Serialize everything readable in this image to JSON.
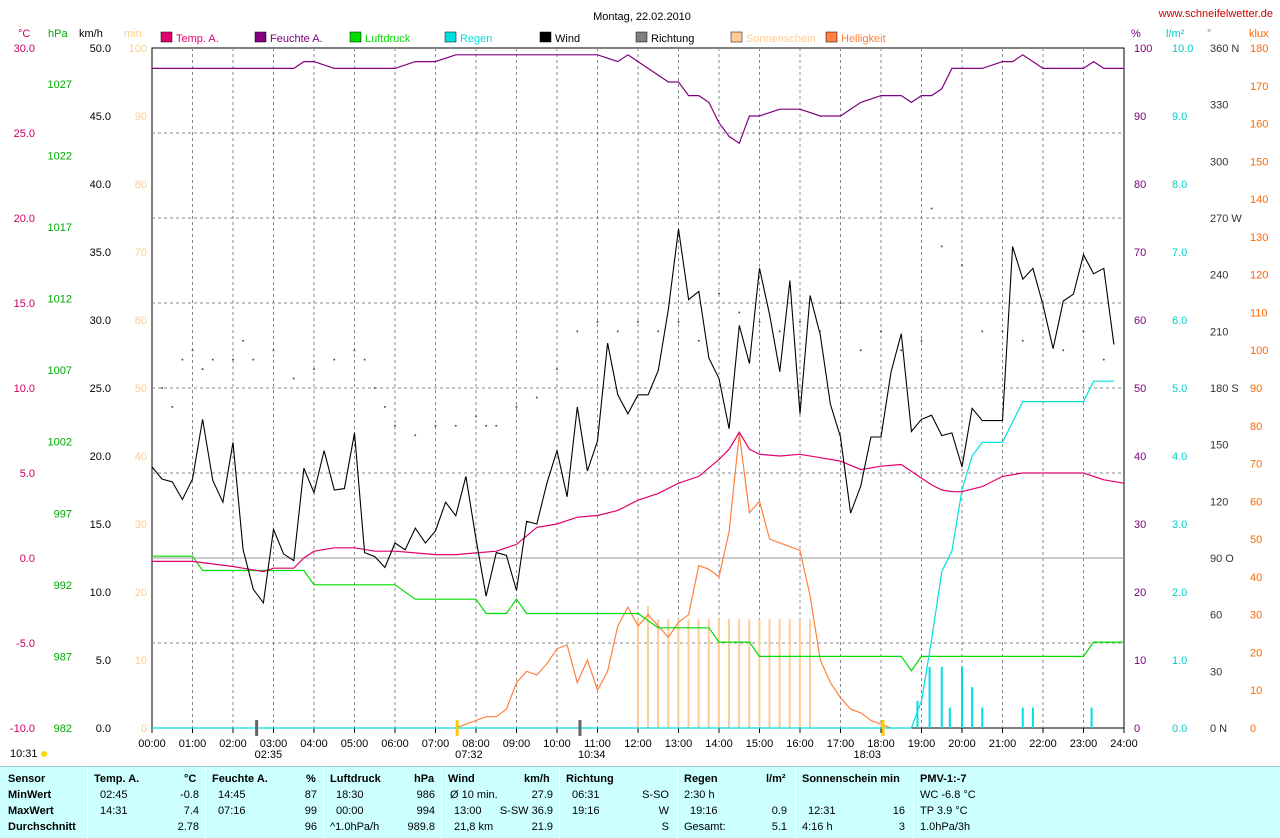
{
  "header": {
    "title": "Montag, 22.02.2010",
    "site": "www.schneifelwetter.de"
  },
  "axes": {
    "temp": {
      "unit": "°C",
      "ticks": [
        "30.0",
        "25.0",
        "20.0",
        "15.0",
        "10.0",
        "5.0",
        "0.0",
        "-5.0",
        "-10.0"
      ],
      "color": "#cc0066"
    },
    "pressure": {
      "unit": "hPa",
      "ticks": [
        "1027",
        "1022",
        "1017",
        "1012",
        "1007",
        "1002",
        "997",
        "992",
        "987",
        "982"
      ],
      "color": "#00aa00"
    },
    "wind": {
      "unit": "km/h",
      "ticks": [
        "50.0",
        "45.0",
        "40.0",
        "35.0",
        "30.0",
        "25.0",
        "20.0",
        "15.0",
        "10.0",
        "5.0",
        "0.0"
      ],
      "color": "#000000"
    },
    "sun": {
      "unit": "min",
      "ticks": [
        "100",
        "90",
        "80",
        "70",
        "60",
        "50",
        "40",
        "30",
        "20",
        "10",
        "0"
      ],
      "color": "#ffcc88"
    },
    "humidity": {
      "unit": "%",
      "ticks": [
        "100",
        "90",
        "80",
        "70",
        "60",
        "50",
        "40",
        "30",
        "20",
        "10",
        "0"
      ],
      "color": "#800080"
    },
    "rain": {
      "unit": "l/m²",
      "ticks": [
        "10.0",
        "9.0",
        "8.0",
        "7.0",
        "6.0",
        "5.0",
        "4.0",
        "3.0",
        "2.0",
        "1.0",
        "0.0"
      ],
      "color": "#00cccc"
    },
    "direction": {
      "unit": "°",
      "ticks": [
        "360 N",
        "330",
        "300",
        "270 W",
        "240",
        "210",
        "180 S",
        "150",
        "120",
        "90 O",
        "60",
        "30",
        "0 N"
      ],
      "color": "#000000"
    },
    "lux": {
      "unit": "klux",
      "ticks": [
        "180",
        "170",
        "160",
        "150",
        "140",
        "130",
        "120",
        "110",
        "100",
        "90",
        "80",
        "70",
        "60",
        "50",
        "40",
        "30",
        "20",
        "10",
        "0"
      ],
      "color": "#ff6600"
    },
    "time": {
      "ticks": [
        "00:00",
        "01:00",
        "02:00",
        "03:00",
        "04:00",
        "05:00",
        "06:00",
        "07:00",
        "08:00",
        "09:00",
        "10:00",
        "11:00",
        "12:00",
        "13:00",
        "14:00",
        "15:00",
        "16:00",
        "17:00",
        "18:00",
        "19:00",
        "20:00",
        "21:00",
        "22:00",
        "23:00",
        "24:00"
      ]
    }
  },
  "legend": [
    {
      "label": "Temp. A.",
      "color": "#e0006e"
    },
    {
      "label": "Feuchte A.",
      "color": "#800080"
    },
    {
      "label": "Luftdruck",
      "color": "#00dd00"
    },
    {
      "label": "Regen",
      "color": "#00e0e0"
    },
    {
      "label": "Wind",
      "color": "#000000"
    },
    {
      "label": "Richtung",
      "color": "#808080"
    },
    {
      "label": "Sonnenschein",
      "color": "#ffcc99"
    },
    {
      "label": "Helligkeit",
      "color": "#ff8040"
    }
  ],
  "markers": {
    "left_time": "10:31",
    "m1": "02:35",
    "m2": "07:32",
    "m3": "10:34",
    "m4": "18:03"
  },
  "chart_data": {
    "type": "line",
    "x_unit": "hours",
    "xlim": [
      0,
      24
    ],
    "series": [
      {
        "name": "Wind",
        "unit": "km/h",
        "ylim": [
          0,
          50
        ],
        "x": [
          0,
          0.25,
          0.5,
          0.75,
          1,
          1.25,
          1.5,
          1.75,
          2,
          2.25,
          2.5,
          2.75,
          3,
          3.25,
          3.5,
          3.75,
          4,
          4.25,
          4.5,
          4.75,
          5,
          5.25,
          5.5,
          5.75,
          6,
          6.25,
          6.5,
          6.75,
          7,
          7.25,
          7.5,
          7.75,
          8,
          8.25,
          8.5,
          8.75,
          9,
          9.25,
          9.5,
          9.75,
          10,
          10.25,
          10.5,
          10.75,
          11,
          11.25,
          11.5,
          11.75,
          12,
          12.25,
          12.5,
          12.75,
          13,
          13.25,
          13.5,
          13.75,
          14,
          14.25,
          14.5,
          14.75,
          15,
          15.25,
          15.5,
          15.75,
          16,
          16.25,
          16.5,
          16.75,
          17,
          17.25,
          17.5,
          17.75,
          18,
          18.25,
          18.5,
          18.75,
          19,
          19.25,
          19.5,
          19.75,
          20,
          20.25,
          20.5,
          20.75,
          21,
          21.25,
          21.5,
          21.75,
          22,
          22.25,
          22.5,
          22.75,
          23,
          23.25,
          23.5,
          23.75
        ],
        "y": [
          19.2,
          18.3,
          18.1,
          16.8,
          18.3,
          22.7,
          18.2,
          16.6,
          21.0,
          13.1,
          10.2,
          9.2,
          14.6,
          12.8,
          12.3,
          19.1,
          17.3,
          20.4,
          17.5,
          17.6,
          21.7,
          12.9,
          12.6,
          11.8,
          13.6,
          13.1,
          14.7,
          13.6,
          14.5,
          16.6,
          15.6,
          18.5,
          13.9,
          9.7,
          12.9,
          12.7,
          10.1,
          15.2,
          15.0,
          18.0,
          20.4,
          17.0,
          23.6,
          18.9,
          21.1,
          28.3,
          24.5,
          23.1,
          24.5,
          24.5,
          26.3,
          30.8,
          36.7,
          31.5,
          32.1,
          27.2,
          25.7,
          22.0,
          29.6,
          26.8,
          33.8,
          30.4,
          26.2,
          32.9,
          23.1,
          31.8,
          28.9,
          23.8,
          21.4,
          15.8,
          17.8,
          21.4,
          21.4,
          26.2,
          29.0,
          21.8,
          22.7,
          23.0,
          21.5,
          21.7,
          19.2,
          23.5,
          22.6,
          22.6,
          22.6,
          35.4,
          33.0,
          33.8,
          31.1,
          27.9,
          31.4,
          31.9,
          34.8,
          33.4,
          33.8,
          28.2
        ]
      },
      {
        "name": "Feuchte A.",
        "unit": "%",
        "ylim": [
          0,
          100
        ],
        "x": [
          0,
          1,
          2,
          3,
          3.5,
          3.75,
          4,
          4.5,
          5,
          6,
          6.5,
          7,
          7.5,
          8,
          9,
          11,
          11.5,
          11.75,
          12,
          12.25,
          12.5,
          12.75,
          13,
          13.25,
          13.5,
          13.75,
          14,
          14.25,
          14.5,
          14.75,
          15,
          15.5,
          15.75,
          16,
          16.5,
          17,
          17.5,
          18,
          18.5,
          18.75,
          19,
          19.25,
          19.5,
          19.75,
          20,
          20.5,
          21,
          21.25,
          21.5,
          22,
          22.5,
          23,
          23.25,
          23.5,
          24
        ],
        "y": [
          97,
          97,
          97,
          97,
          97,
          98,
          98,
          97,
          97,
          97,
          98,
          98,
          99,
          99,
          99,
          99,
          98,
          99,
          98,
          97,
          96,
          95,
          95,
          93,
          93,
          92,
          89,
          87,
          86,
          90,
          90,
          91,
          91,
          91,
          90,
          90,
          92,
          93,
          93,
          92,
          93,
          93,
          94,
          97,
          97,
          97,
          98,
          98,
          99,
          97,
          97,
          97,
          98,
          97,
          97
        ]
      },
      {
        "name": "Temp. A.",
        "unit": "°C",
        "ylim": [
          -10,
          30
        ],
        "x": [
          0,
          1,
          2,
          2.75,
          3,
          3.5,
          3.75,
          4,
          4.5,
          5,
          5.5,
          6,
          6.5,
          7,
          7.5,
          8,
          8.5,
          9,
          9.5,
          10,
          10.5,
          11,
          11.5,
          12,
          12.5,
          13,
          13.5,
          14,
          14.25,
          14.5,
          14.75,
          15,
          15.5,
          16,
          16.5,
          17,
          17.5,
          18,
          18.5,
          19,
          19.25,
          19.5,
          19.75,
          20,
          20.5,
          21,
          21.5,
          22,
          22.5,
          23,
          23.5,
          24
        ],
        "y": [
          -0.2,
          -0.2,
          -0.5,
          -0.8,
          -0.6,
          -0.6,
          0.0,
          0.4,
          0.6,
          0.6,
          0.4,
          0.4,
          0.3,
          0.2,
          0.2,
          0.3,
          0.4,
          0.8,
          1.8,
          2.0,
          2.4,
          2.5,
          2.8,
          3.4,
          3.8,
          4.4,
          4.8,
          5.8,
          6.4,
          7.4,
          6.4,
          6.1,
          6.0,
          6.1,
          5.9,
          5.7,
          5.2,
          5.4,
          5.5,
          4.7,
          4.3,
          4.0,
          3.9,
          3.9,
          4.2,
          4.8,
          5.0,
          5.0,
          5.0,
          5.0,
          4.6,
          4.4
        ]
      },
      {
        "name": "Luftdruck",
        "unit": "hPa",
        "ylim": [
          982,
          1029.5
        ],
        "x": [
          0,
          1,
          1.25,
          2,
          3,
          3.5,
          3.75,
          4,
          6,
          6.5,
          7,
          8,
          8.25,
          8.5,
          8.75,
          9,
          9.25,
          10,
          11,
          12,
          12.25,
          12.5,
          13,
          13.75,
          14,
          14.5,
          14.75,
          15,
          16,
          17,
          18,
          18.5,
          18.75,
          19,
          20,
          21,
          22,
          22.5,
          23,
          23.25,
          23.5,
          24
        ],
        "y": [
          994.0,
          994.0,
          993.0,
          993.0,
          993.0,
          993.0,
          993.0,
          992.0,
          992.0,
          991.0,
          991.0,
          991.0,
          990.0,
          990.0,
          990.0,
          991.0,
          990.0,
          990.0,
          990.0,
          990.0,
          989.5,
          989.0,
          989.0,
          989.0,
          988.0,
          988.0,
          988.0,
          987.0,
          987.0,
          987.0,
          987.0,
          987.0,
          986.0,
          987.0,
          987.0,
          987.0,
          987.0,
          987.0,
          987.0,
          988.0,
          988.0,
          988.0
        ]
      },
      {
        "name": "Regen",
        "unit": "l/m²",
        "ylim": [
          0,
          10
        ],
        "x": [
          0,
          18.75,
          19,
          19.25,
          19.5,
          19.75,
          20,
          20.25,
          20.5,
          21,
          21.25,
          21.5,
          22,
          22.5,
          23,
          23.25,
          23.75
        ],
        "y": [
          0,
          0,
          0.4,
          1.3,
          2.3,
          2.6,
          3.5,
          4.0,
          4.2,
          4.2,
          4.5,
          4.8,
          4.8,
          4.8,
          4.8,
          5.1,
          5.1
        ]
      },
      {
        "name": "Helligkeit",
        "unit": "klux",
        "ylim": [
          0,
          180
        ],
        "x": [
          7.5,
          7.75,
          8,
          8.25,
          8.5,
          8.75,
          9,
          9.25,
          9.5,
          9.75,
          10,
          10.25,
          10.5,
          10.75,
          11,
          11.25,
          11.5,
          11.75,
          12,
          12.25,
          12.5,
          12.75,
          13,
          13.25,
          13.5,
          13.75,
          14,
          14.25,
          14.5,
          14.75,
          15,
          15.25,
          15.5,
          15.75,
          16,
          16.25,
          16.5,
          16.75,
          17,
          17.25,
          17.5,
          17.75,
          18,
          18.25
        ],
        "y": [
          0,
          1,
          2,
          3,
          3,
          5,
          12,
          15,
          14,
          17,
          21,
          22,
          12,
          18,
          10,
          15,
          27,
          32,
          27,
          30,
          27,
          24,
          28,
          30,
          43,
          42,
          40,
          52,
          78,
          57,
          60,
          50,
          49,
          48,
          47,
          35,
          18,
          12,
          8,
          5,
          4,
          2,
          1,
          0
        ]
      },
      {
        "name": "Richtung",
        "unit": "°",
        "ylim": [
          0,
          360
        ],
        "x": [
          0.25,
          0.5,
          0.75,
          1,
          1.25,
          1.5,
          2,
          2.25,
          2.5,
          3,
          3.5,
          4,
          4.5,
          5,
          5.25,
          5.5,
          5.75,
          6,
          6.5,
          7,
          7.5,
          8,
          8.25,
          8.5,
          9,
          9.5,
          10,
          10.5,
          11,
          11.5,
          12,
          12.5,
          13,
          13.5,
          14,
          14.5,
          15,
          15.5,
          16,
          16.5,
          17,
          17.5,
          18,
          18.5,
          19,
          19.25,
          19.5,
          20,
          20.5,
          21,
          21.5,
          22,
          22.5,
          23,
          23.5
        ],
        "y": [
          180,
          170,
          195,
          200,
          190,
          195,
          195,
          205,
          195,
          200,
          185,
          190,
          195,
          200,
          195,
          180,
          170,
          160,
          155,
          160,
          160,
          165,
          160,
          160,
          170,
          175,
          190,
          210,
          215,
          210,
          215,
          210,
          215,
          205,
          230,
          220,
          215,
          210,
          215,
          210,
          225,
          200,
          210,
          200,
          205,
          275,
          255,
          245,
          210,
          210,
          205,
          225,
          200,
          210,
          195
        ]
      },
      {
        "name": "Sonnenschein",
        "unit": "min",
        "x": [
          11.75,
          12,
          12.25,
          12.5,
          12.75,
          13,
          13.25,
          13.5,
          13.75,
          14,
          14.25,
          14.5,
          14.75,
          15,
          15.25,
          15.5,
          15.75,
          16
        ],
        "y": [
          16,
          18,
          16,
          16,
          16,
          16,
          16,
          16,
          16,
          16,
          16,
          16,
          16,
          16,
          16,
          16,
          16,
          16
        ]
      }
    ]
  },
  "stats": {
    "sensor": {
      "title": "Sensor",
      "rows": [
        "MinWert",
        "MaxWert",
        "Durchschnitt"
      ]
    },
    "temp": {
      "title": "Temp. A.",
      "unit": "°C",
      "rows": [
        [
          "02:45",
          "-0.8"
        ],
        [
          "14:31",
          "7.4"
        ],
        [
          "",
          "2.78"
        ]
      ]
    },
    "humidity": {
      "title": "Feuchte A.",
      "unit": "%",
      "rows": [
        [
          "14:45",
          "87"
        ],
        [
          "07:16",
          "99"
        ],
        [
          "",
          "96"
        ]
      ]
    },
    "pressure": {
      "title": "Luftdruck",
      "unit": "hPa",
      "rows": [
        [
          "18:30",
          "986"
        ],
        [
          "00:00",
          "994"
        ],
        [
          "^1.0hPa/h",
          "989.8"
        ]
      ]
    },
    "wind": {
      "title": "Wind",
      "unit": "km/h",
      "rows": [
        [
          "Ø 10 min.",
          "27.9"
        ],
        [
          "13:00",
          "S-SW 36.9"
        ],
        [
          "21,8 km",
          "21.9"
        ]
      ]
    },
    "dir": {
      "title": "Richtung",
      "rows": [
        [
          "06:31",
          "S-SO"
        ],
        [
          "19:16",
          "W"
        ],
        [
          "",
          "S"
        ]
      ]
    },
    "rain": {
      "title": "Regen",
      "unit": "l/m²",
      "rows": [
        [
          "2:30 h",
          ""
        ],
        [
          "19:16",
          "0.9"
        ],
        [
          "Gesamt:",
          "5.1"
        ]
      ]
    },
    "sun": {
      "title": "Sonnenschein min",
      "rows": [
        [
          "",
          ""
        ],
        [
          "12:31",
          "16"
        ],
        [
          "4:16 h",
          "3"
        ]
      ]
    },
    "pmv": {
      "title": "PMV-1:-7",
      "rows": [
        "WC -6.8 °C",
        "TP 3.9 °C",
        "1.0hPa/3h"
      ]
    }
  }
}
